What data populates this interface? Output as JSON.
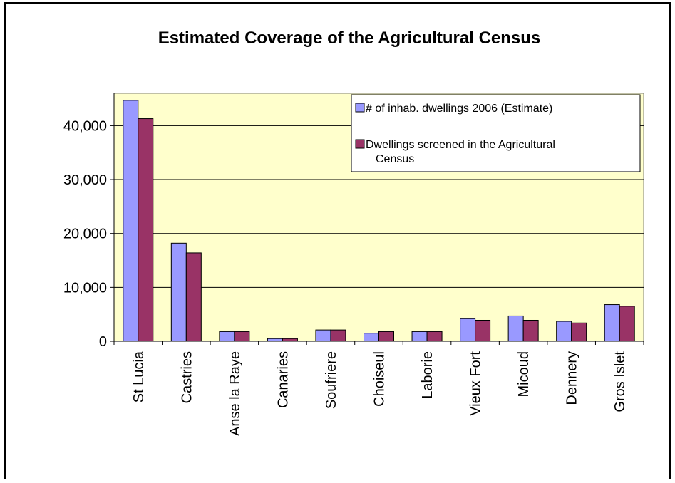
{
  "chart_data": {
    "type": "bar",
    "title": "Estimated Coverage of the Agricultural Census",
    "xlabel": "",
    "ylabel": "",
    "ylim": [
      0,
      46000
    ],
    "yticks": [
      0,
      10000,
      20000,
      30000,
      40000
    ],
    "ytick_labels": [
      "0",
      "10,000",
      "20,000",
      "30,000",
      "40,000"
    ],
    "grid": true,
    "legend_position": "top-right",
    "categories": [
      "St Lucia",
      "Castries",
      "Anse la Raye",
      "Canaries",
      "Soufriere",
      "Choiseul",
      "Laborie",
      "Vieux Fort",
      "Micoud",
      "Dennery",
      "Gros Islet"
    ],
    "series": [
      {
        "name": "# of inhab. dwellings 2006 (Estimate)",
        "color": "#9999ff",
        "values": [
          44700,
          18200,
          1800,
          500,
          2100,
          1500,
          1800,
          4200,
          4700,
          3700,
          6800
        ]
      },
      {
        "name": "Dwellings screened in the Agricultural Census",
        "color": "#993366",
        "values": [
          41300,
          16400,
          1800,
          500,
          2100,
          1800,
          1800,
          3900,
          3900,
          3400,
          6500
        ]
      }
    ],
    "colors": {
      "plot_background": "#ffffcc",
      "gridline": "#000000"
    }
  }
}
